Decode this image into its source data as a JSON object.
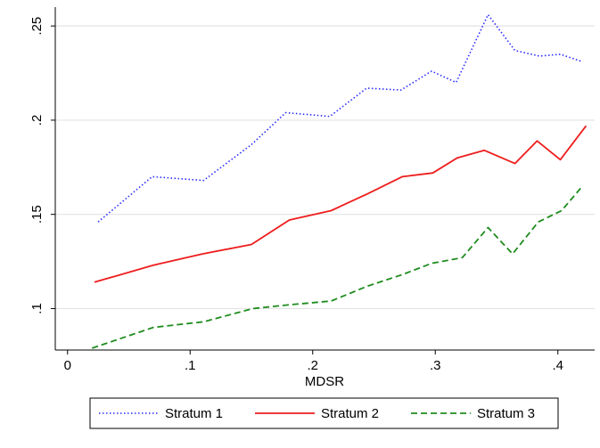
{
  "chart_data": {
    "type": "line",
    "xlabel": "MDSR",
    "ylabel": "",
    "xlim": [
      -0.01,
      0.43
    ],
    "ylim": [
      0.078,
      0.26
    ],
    "x_ticks": [
      {
        "value": 0,
        "label": "0"
      },
      {
        "value": 0.1,
        "label": ".1"
      },
      {
        "value": 0.2,
        "label": ".2"
      },
      {
        "value": 0.3,
        "label": ".3"
      },
      {
        "value": 0.4,
        "label": ".4"
      }
    ],
    "y_ticks": [
      {
        "value": 0.1,
        "label": ".1"
      },
      {
        "value": 0.15,
        "label": ".15"
      },
      {
        "value": 0.2,
        "label": ".2"
      },
      {
        "value": 0.25,
        "label": ".25"
      }
    ],
    "grid": "horizontal",
    "legend_position": "bottom",
    "series": [
      {
        "name": "Stratum 1",
        "color": "#2b2bff",
        "style": "dotted",
        "x": [
          0.025,
          0.069,
          0.111,
          0.15,
          0.178,
          0.214,
          0.244,
          0.272,
          0.297,
          0.317,
          0.343,
          0.365,
          0.385,
          0.402,
          0.42
        ],
        "y": [
          0.146,
          0.17,
          0.168,
          0.187,
          0.204,
          0.202,
          0.217,
          0.216,
          0.226,
          0.22,
          0.256,
          0.237,
          0.234,
          0.235,
          0.231
        ]
      },
      {
        "name": "Stratum 2",
        "color": "#ee1c1c",
        "style": "solid",
        "x": [
          0.022,
          0.07,
          0.11,
          0.15,
          0.181,
          0.215,
          0.245,
          0.273,
          0.298,
          0.318,
          0.34,
          0.365,
          0.383,
          0.402,
          0.423
        ],
        "y": [
          0.114,
          0.123,
          0.129,
          0.134,
          0.147,
          0.152,
          0.161,
          0.17,
          0.172,
          0.18,
          0.184,
          0.177,
          0.189,
          0.179,
          0.197
        ]
      },
      {
        "name": "Stratum 3",
        "color": "#1e8c1e",
        "style": "dashed",
        "x": [
          0.02,
          0.07,
          0.111,
          0.151,
          0.181,
          0.215,
          0.245,
          0.273,
          0.297,
          0.322,
          0.343,
          0.363,
          0.384,
          0.403,
          0.42
        ],
        "y": [
          0.079,
          0.09,
          0.093,
          0.1,
          0.102,
          0.104,
          0.112,
          0.118,
          0.124,
          0.127,
          0.143,
          0.129,
          0.146,
          0.152,
          0.165
        ]
      }
    ]
  }
}
